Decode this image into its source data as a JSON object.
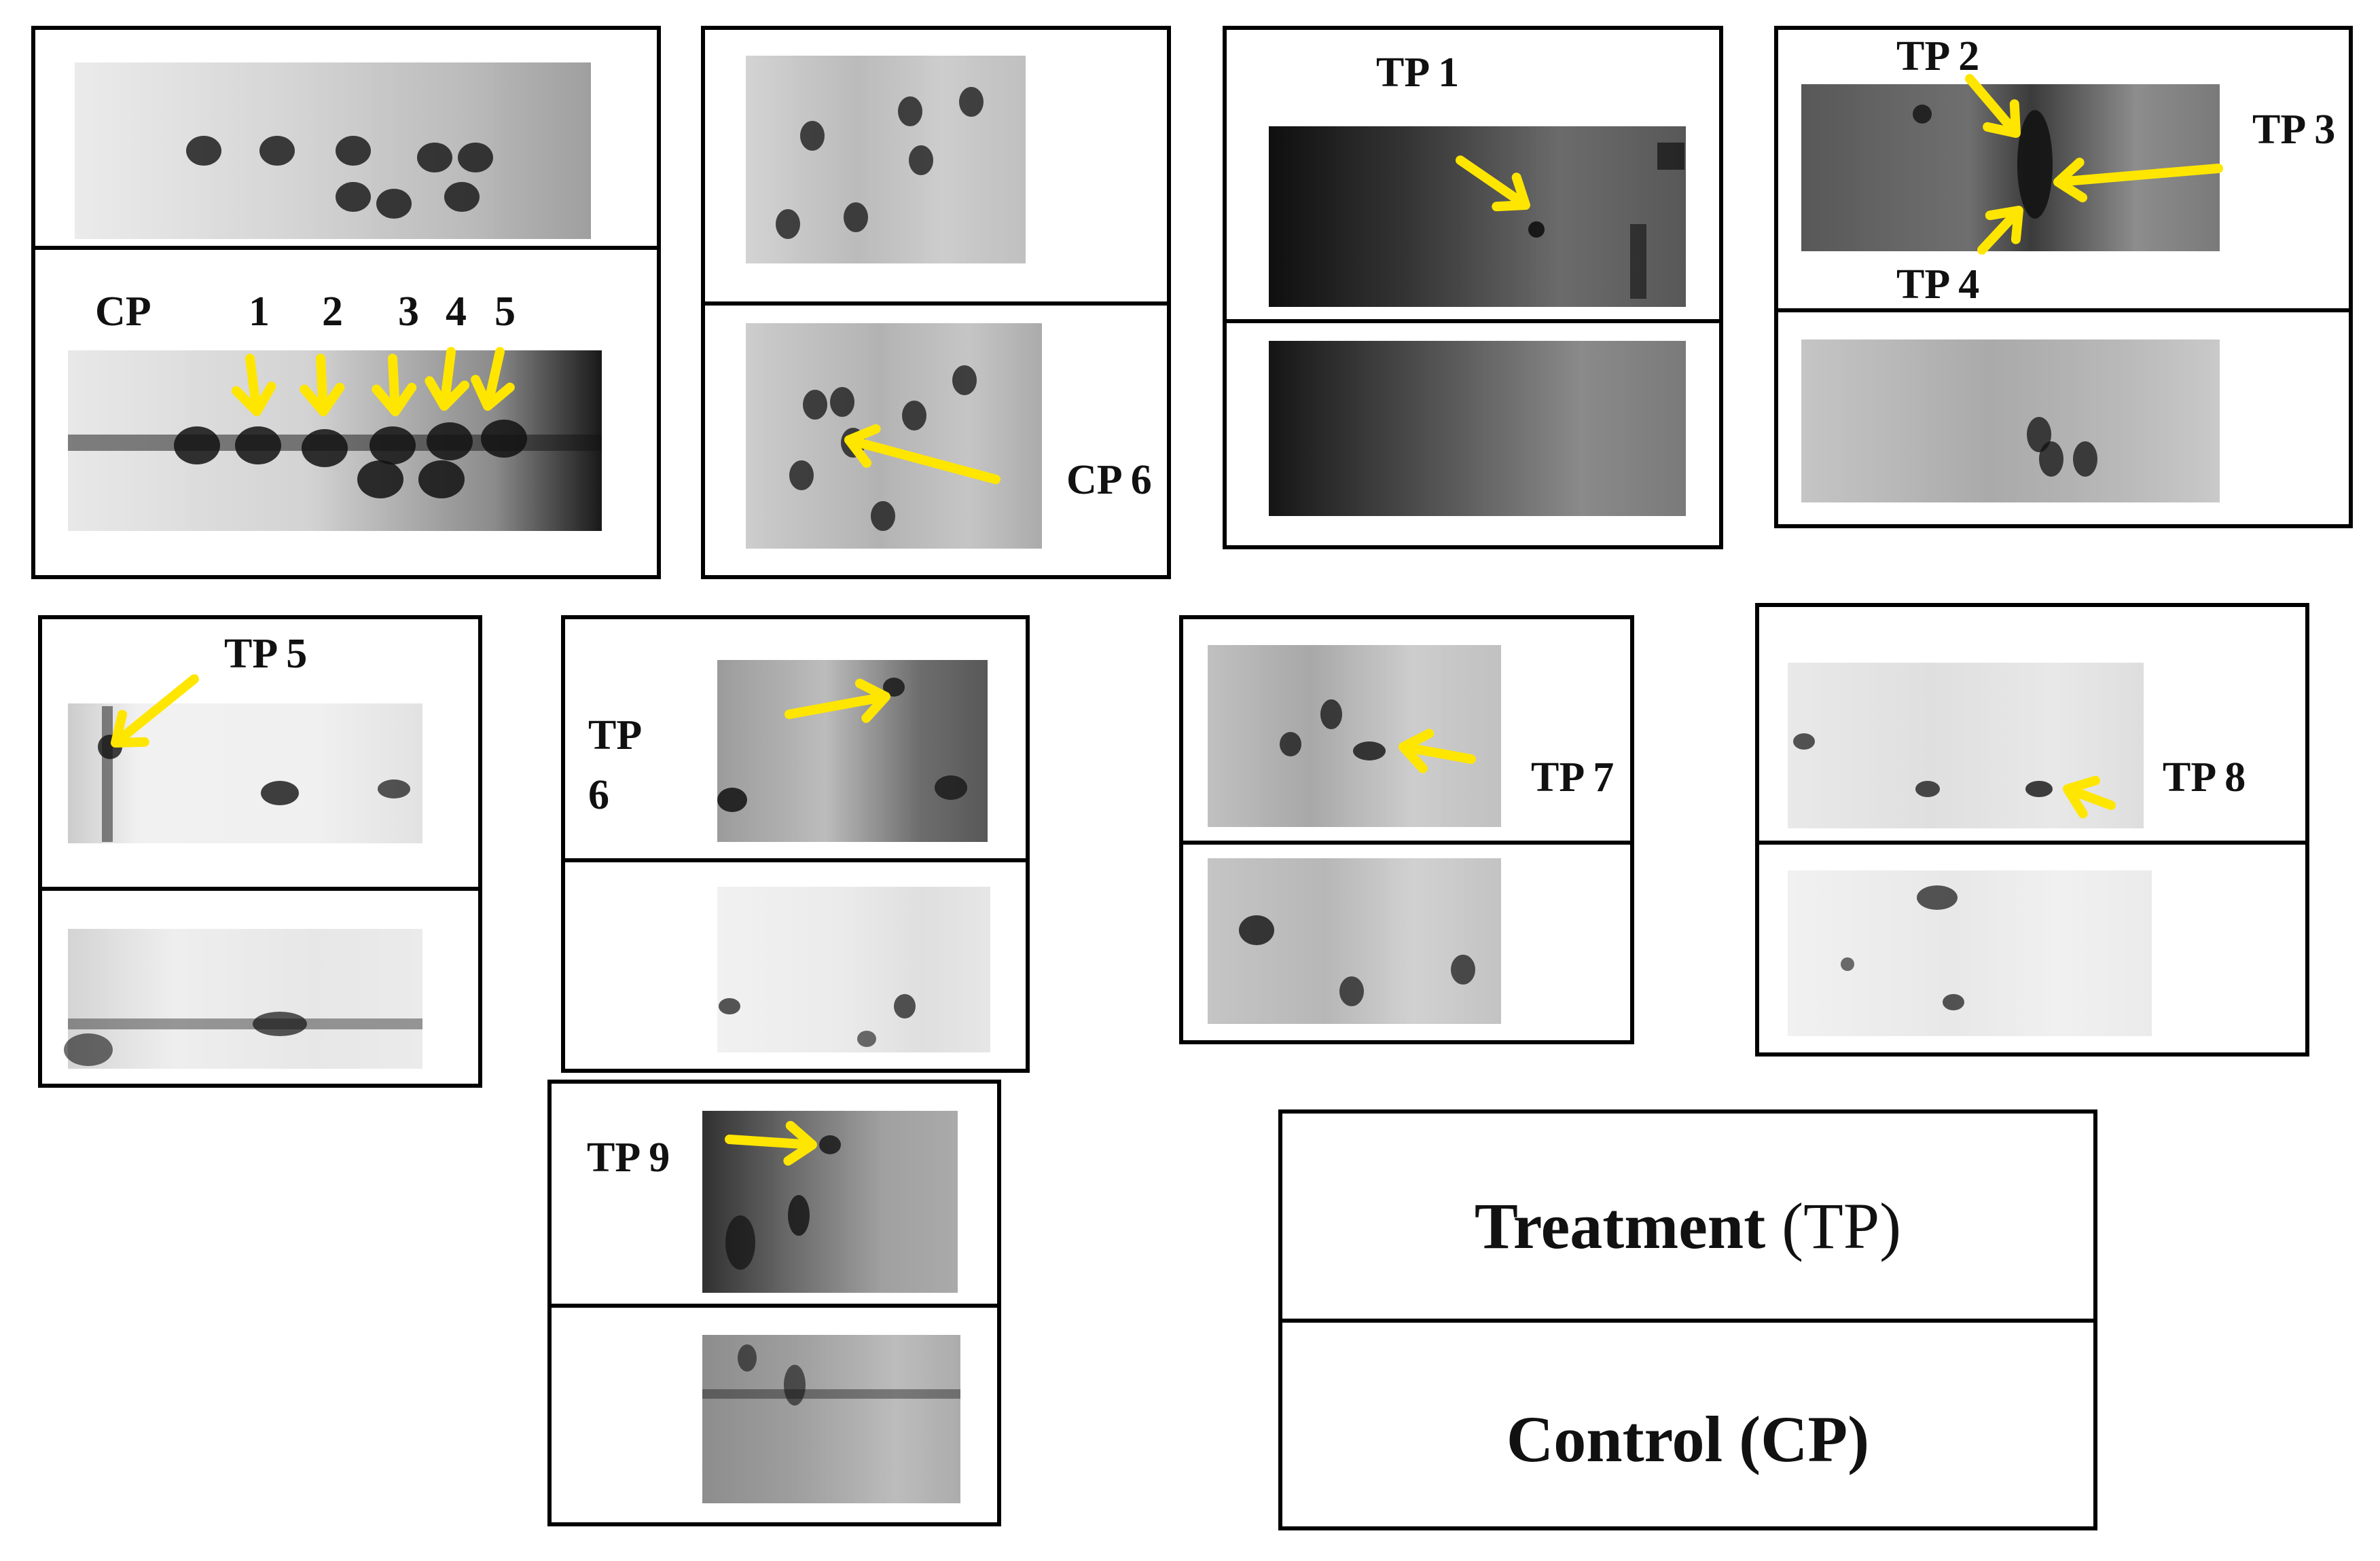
{
  "figure": {
    "arrow_color": "#ffe600",
    "gel_tone_light": "#ededed",
    "gel_tone_dark": "#111111",
    "labels": {
      "cp": "CP",
      "n1": "1",
      "n2": "2",
      "n3": "3",
      "n4": "4",
      "n5": "5",
      "cp6": "CP 6",
      "tp1": "TP 1",
      "tp2": "TP 2",
      "tp3": "TP 3",
      "tp4": "TP 4",
      "tp5": "TP 5",
      "tp6_a": "TP",
      "tp6_b": "6",
      "tp7": "TP 7",
      "tp8": "TP 8",
      "tp9": "TP 9"
    },
    "legend": {
      "treatment": "Treatment",
      "treatment_abbr": "(TP)",
      "control": "Control",
      "control_abbr": "(CP)"
    }
  }
}
